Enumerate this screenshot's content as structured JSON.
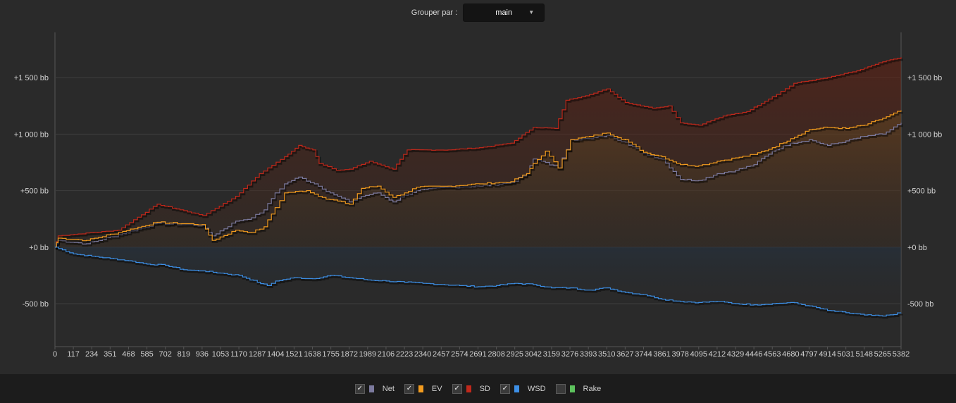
{
  "controls": {
    "group_by_label": "Grouper par :",
    "group_by_value": "main",
    "dropdown_icon": "caret-down-icon"
  },
  "legend": [
    {
      "name": "Net",
      "checked": true,
      "color": "#7c7a9e"
    },
    {
      "name": "EV",
      "checked": true,
      "color": "#f39c1f"
    },
    {
      "name": "SD",
      "checked": true,
      "color": "#c0281b"
    },
    {
      "name": "WSD",
      "checked": true,
      "color": "#3d8fe6"
    },
    {
      "name": "Rake",
      "checked": false,
      "color": "#5dc25d"
    }
  ],
  "chart_data": {
    "type": "line",
    "x_ticks": [
      0,
      117,
      234,
      351,
      468,
      585,
      702,
      819,
      936,
      1053,
      1170,
      1287,
      1404,
      1521,
      1638,
      1755,
      1872,
      1989,
      2106,
      2223,
      2340,
      2457,
      2574,
      2691,
      2808,
      2925,
      3042,
      3159,
      3276,
      3393,
      3510,
      3627,
      3744,
      3861,
      3978,
      4095,
      4212,
      4329,
      4446,
      4563,
      4680,
      4797,
      4914,
      5031,
      5148,
      5265,
      5382
    ],
    "xlim": [
      0,
      5382
    ],
    "ylim": [
      -880,
      1900
    ],
    "y_ticks": [
      {
        "value": 1500,
        "label": "+1 500 bb"
      },
      {
        "value": 1000,
        "label": "+1 000 bb"
      },
      {
        "value": 500,
        "label": "+500 bb"
      },
      {
        "value": 0,
        "label": "+0 bb"
      },
      {
        "value": -500,
        "label": "-500 bb"
      }
    ],
    "grid": "horizontal",
    "unit": "bb",
    "series": [
      {
        "name": "SD",
        "color": "#c0281b",
        "values": [
          [
            0,
            0
          ],
          [
            20,
            100
          ],
          [
            400,
            150
          ],
          [
            650,
            380
          ],
          [
            940,
            280
          ],
          [
            1150,
            450
          ],
          [
            1300,
            650
          ],
          [
            1460,
            800
          ],
          [
            1550,
            900
          ],
          [
            1640,
            860
          ],
          [
            1680,
            740
          ],
          [
            1790,
            680
          ],
          [
            1872,
            690
          ],
          [
            2000,
            760
          ],
          [
            2150,
            690
          ],
          [
            2240,
            860
          ],
          [
            2500,
            860
          ],
          [
            2700,
            880
          ],
          [
            2900,
            920
          ],
          [
            3042,
            1060
          ],
          [
            3180,
            1050
          ],
          [
            3250,
            1300
          ],
          [
            3400,
            1350
          ],
          [
            3510,
            1400
          ],
          [
            3627,
            1280
          ],
          [
            3800,
            1230
          ],
          [
            3900,
            1250
          ],
          [
            3978,
            1100
          ],
          [
            4095,
            1080
          ],
          [
            4250,
            1160
          ],
          [
            4400,
            1200
          ],
          [
            4563,
            1330
          ],
          [
            4700,
            1450
          ],
          [
            4914,
            1500
          ],
          [
            5100,
            1560
          ],
          [
            5265,
            1640
          ],
          [
            5382,
            1680
          ]
        ]
      },
      {
        "name": "EV",
        "color": "#f39c1f",
        "values": [
          [
            0,
            0
          ],
          [
            20,
            80
          ],
          [
            200,
            60
          ],
          [
            430,
            140
          ],
          [
            650,
            220
          ],
          [
            936,
            200
          ],
          [
            1000,
            60
          ],
          [
            1150,
            150
          ],
          [
            1250,
            130
          ],
          [
            1330,
            180
          ],
          [
            1400,
            350
          ],
          [
            1460,
            480
          ],
          [
            1600,
            500
          ],
          [
            1700,
            440
          ],
          [
            1872,
            380
          ],
          [
            1950,
            520
          ],
          [
            2050,
            540
          ],
          [
            2150,
            440
          ],
          [
            2223,
            480
          ],
          [
            2300,
            530
          ],
          [
            2500,
            540
          ],
          [
            2700,
            560
          ],
          [
            2900,
            580
          ],
          [
            3000,
            650
          ],
          [
            3042,
            740
          ],
          [
            3120,
            850
          ],
          [
            3200,
            700
          ],
          [
            3280,
            950
          ],
          [
            3400,
            980
          ],
          [
            3510,
            1010
          ],
          [
            3627,
            950
          ],
          [
            3744,
            840
          ],
          [
            3861,
            800
          ],
          [
            3978,
            730
          ],
          [
            4095,
            720
          ],
          [
            4212,
            760
          ],
          [
            4329,
            790
          ],
          [
            4446,
            820
          ],
          [
            4563,
            880
          ],
          [
            4680,
            960
          ],
          [
            4797,
            1040
          ],
          [
            4914,
            1060
          ],
          [
            5031,
            1050
          ],
          [
            5148,
            1080
          ],
          [
            5265,
            1140
          ],
          [
            5382,
            1210
          ]
        ]
      },
      {
        "name": "Net",
        "color": "#7c7a9e",
        "values": [
          [
            0,
            0
          ],
          [
            20,
            60
          ],
          [
            200,
            30
          ],
          [
            430,
            120
          ],
          [
            650,
            210
          ],
          [
            936,
            190
          ],
          [
            1000,
            100
          ],
          [
            1150,
            230
          ],
          [
            1250,
            260
          ],
          [
            1330,
            330
          ],
          [
            1400,
            480
          ],
          [
            1460,
            560
          ],
          [
            1550,
            620
          ],
          [
            1650,
            560
          ],
          [
            1750,
            480
          ],
          [
            1872,
            400
          ],
          [
            1950,
            450
          ],
          [
            2050,
            480
          ],
          [
            2150,
            400
          ],
          [
            2223,
            460
          ],
          [
            2300,
            500
          ],
          [
            2500,
            530
          ],
          [
            2700,
            540
          ],
          [
            2900,
            570
          ],
          [
            3000,
            650
          ],
          [
            3042,
            780
          ],
          [
            3120,
            750
          ],
          [
            3200,
            700
          ],
          [
            3280,
            950
          ],
          [
            3400,
            960
          ],
          [
            3510,
            990
          ],
          [
            3627,
            930
          ],
          [
            3744,
            830
          ],
          [
            3861,
            780
          ],
          [
            3978,
            600
          ],
          [
            4095,
            590
          ],
          [
            4212,
            650
          ],
          [
            4329,
            680
          ],
          [
            4446,
            730
          ],
          [
            4563,
            850
          ],
          [
            4680,
            920
          ],
          [
            4797,
            950
          ],
          [
            4914,
            900
          ],
          [
            5031,
            940
          ],
          [
            5148,
            980
          ],
          [
            5265,
            1000
          ],
          [
            5382,
            1100
          ]
        ]
      },
      {
        "name": "WSD",
        "color": "#3d8fe6",
        "values": [
          [
            0,
            0
          ],
          [
            117,
            -60
          ],
          [
            234,
            -80
          ],
          [
            351,
            -100
          ],
          [
            468,
            -120
          ],
          [
            585,
            -150
          ],
          [
            702,
            -160
          ],
          [
            819,
            -200
          ],
          [
            936,
            -210
          ],
          [
            1053,
            -230
          ],
          [
            1170,
            -250
          ],
          [
            1287,
            -310
          ],
          [
            1350,
            -340
          ],
          [
            1404,
            -300
          ],
          [
            1521,
            -270
          ],
          [
            1638,
            -280
          ],
          [
            1755,
            -250
          ],
          [
            1872,
            -270
          ],
          [
            1989,
            -290
          ],
          [
            2106,
            -300
          ],
          [
            2223,
            -310
          ],
          [
            2340,
            -320
          ],
          [
            2457,
            -330
          ],
          [
            2574,
            -340
          ],
          [
            2691,
            -350
          ],
          [
            2808,
            -340
          ],
          [
            2925,
            -320
          ],
          [
            3042,
            -330
          ],
          [
            3159,
            -360
          ],
          [
            3276,
            -360
          ],
          [
            3393,
            -380
          ],
          [
            3510,
            -360
          ],
          [
            3627,
            -400
          ],
          [
            3744,
            -420
          ],
          [
            3861,
            -460
          ],
          [
            3978,
            -480
          ],
          [
            4095,
            -490
          ],
          [
            4212,
            -480
          ],
          [
            4329,
            -500
          ],
          [
            4446,
            -510
          ],
          [
            4563,
            -500
          ],
          [
            4680,
            -490
          ],
          [
            4797,
            -520
          ],
          [
            4914,
            -560
          ],
          [
            5031,
            -580
          ],
          [
            5148,
            -600
          ],
          [
            5265,
            -610
          ],
          [
            5382,
            -580
          ]
        ]
      }
    ]
  }
}
